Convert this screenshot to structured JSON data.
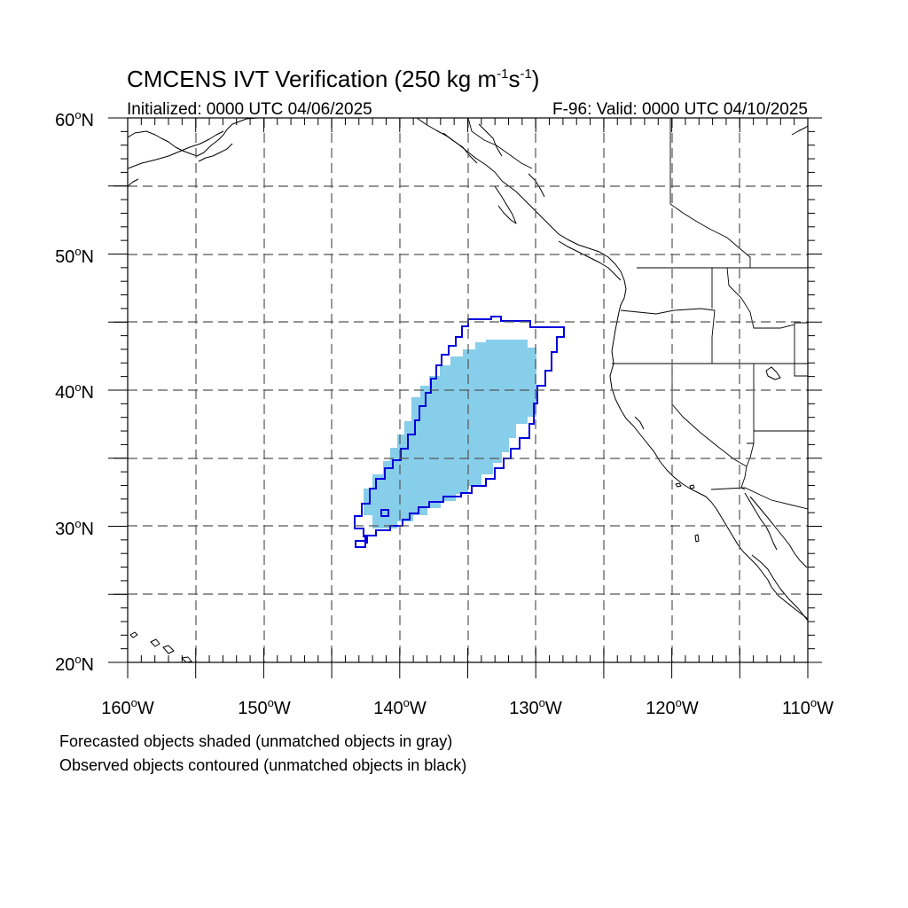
{
  "title": {
    "main": "CMCENS IVT Verification (250 kg m",
    "sup1": "-1",
    "mid": "s",
    "sup2": "-1",
    "end": ")"
  },
  "initialized": "Initialized: 0000 UTC 04/06/2025",
  "valid": "F-96: Valid: 0000 UTC 04/10/2025",
  "map": {
    "lon_range": [
      -160,
      -110
    ],
    "lat_range": [
      20,
      60
    ],
    "lat_labels": [
      "60",
      "50",
      "40",
      "30",
      "20"
    ],
    "lat_suffix": "N",
    "lon_labels": [
      "160",
      "150",
      "140",
      "130",
      "120",
      "110"
    ],
    "lon_suffix": "W",
    "deg": "o",
    "gridlines": "dashed every 5 degrees",
    "forecast_fill_color": "#87ceea",
    "observed_contour_color": "#0000dd"
  },
  "notes": {
    "line1": "Forecasted objects shaded (unmatched objects in gray)",
    "line2": "Observed objects contoured (unmatched objects in black)"
  }
}
